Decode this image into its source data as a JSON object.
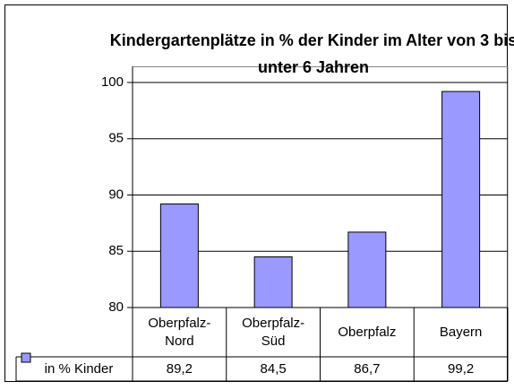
{
  "chart_data": {
    "type": "bar",
    "title": "Kindergartenplätze in % der Kinder im Alter von 3 bis unter 6 Jahren",
    "categories": [
      "Oberpfalz-\nNord",
      "Oberpfalz-\nSüd",
      "Oberpfalz",
      "Bayern"
    ],
    "series": [
      {
        "name": "in % Kinder",
        "color": "#9999ff",
        "values": [
          89.2,
          84.5,
          86.7,
          99.2
        ],
        "value_labels": [
          "89,2",
          "84,5",
          "86,7",
          "99,2"
        ]
      }
    ],
    "ylim": [
      80,
      101.4
    ],
    "yticks": [
      80,
      85,
      90,
      95,
      100
    ],
    "grid": true
  }
}
